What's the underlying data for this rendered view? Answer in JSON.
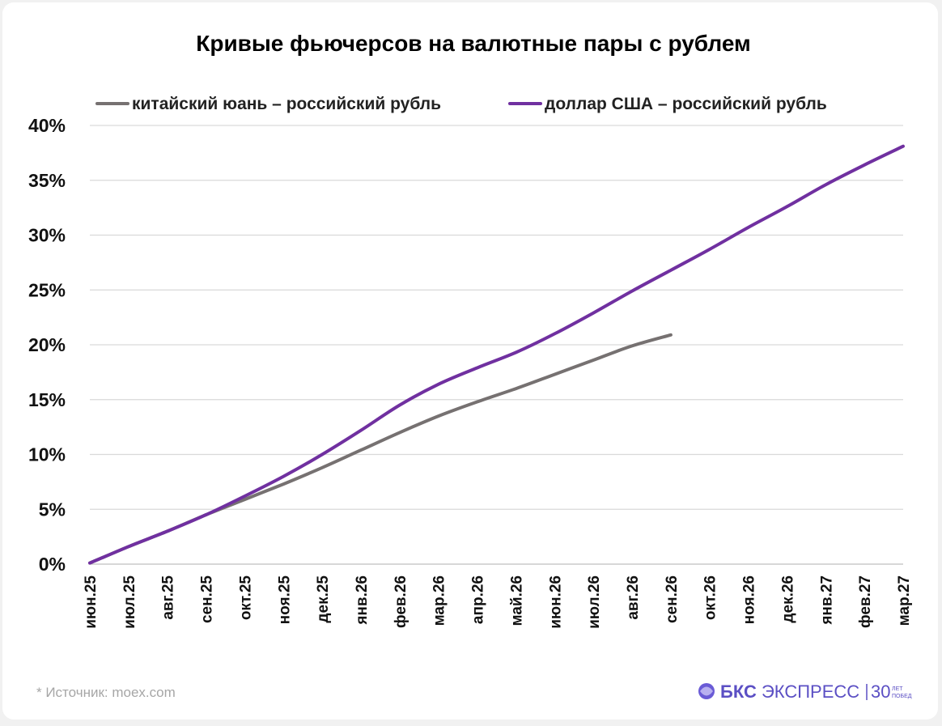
{
  "chart_data": {
    "type": "line",
    "title": "Кривые фьючерсов на валютные пары с рублем",
    "categories": [
      "июн.25",
      "июл.25",
      "авг.25",
      "сен.25",
      "окт.25",
      "ноя.25",
      "дек.25",
      "янв.26",
      "фев.26",
      "мар.26",
      "апр.26",
      "май.26",
      "июн.26",
      "июл.26",
      "авг.26",
      "сен.26",
      "окт.26",
      "ноя.26",
      "дек.26",
      "янв.27",
      "фев.27",
      "мар.27"
    ],
    "y_ticks": [
      "0%",
      "5%",
      "10%",
      "15%",
      "20%",
      "25%",
      "30%",
      "35%",
      "40%"
    ],
    "ylim": [
      0,
      40
    ],
    "y_unit": "%",
    "grid": "horizontal",
    "legend_position": "top",
    "series": [
      {
        "name": "китайский юань – российский рубль",
        "color": "#767171",
        "x": [
          0,
          1,
          2,
          3,
          4,
          5,
          6,
          7,
          8,
          9,
          10,
          11,
          12,
          13,
          14,
          15
        ],
        "values": [
          0.1,
          1.6,
          3.0,
          4.5,
          5.9,
          7.3,
          8.8,
          10.4,
          12.0,
          13.5,
          14.8,
          16.0,
          17.3,
          18.6,
          19.9,
          20.9
        ]
      },
      {
        "name": "доллар США – российский рубль",
        "color": "#7030a0",
        "x": [
          0,
          1,
          2,
          3,
          4,
          5,
          6,
          7,
          8,
          9,
          10,
          11,
          12,
          13,
          14,
          15,
          16,
          17,
          18,
          19,
          20,
          21
        ],
        "values": [
          0.1,
          1.6,
          3.0,
          4.5,
          6.2,
          8.0,
          10.0,
          12.2,
          14.5,
          16.4,
          17.9,
          19.3,
          21.0,
          22.9,
          24.9,
          26.8,
          28.7,
          30.7,
          32.6,
          34.6,
          36.4,
          38.1
        ]
      }
    ]
  },
  "footer": {
    "source_label": "*  Источник: moex.com",
    "brand_main_bold": "БКС",
    "brand_main_light": " ЭКСПРЕСС",
    "brand_badge_number": "30",
    "brand_badge_line1": "ЛЕТ",
    "brand_badge_line2": "ПОБЕД"
  }
}
